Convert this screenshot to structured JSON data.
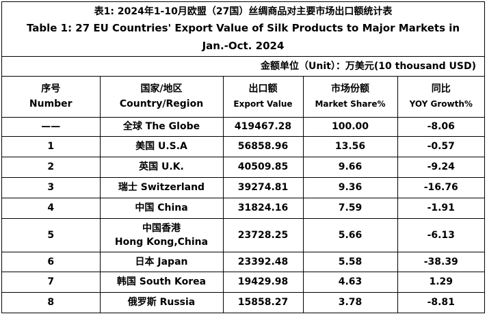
{
  "header": {
    "title_zh": "表1: 2024年1-10月欧盟（27国）丝绸商品对主要市场出口额统计表",
    "title_en": "Table 1: 27 EU Countries' Export Value of Silk Products to Major Markets in Jan.-Oct. 2024",
    "unit": "金额单位（Unit）：万美元(10 thousand USD)"
  },
  "table": {
    "columns": [
      {
        "zh": "序号",
        "en": "Number"
      },
      {
        "zh": "国家/地区",
        "en": "Country/Region"
      },
      {
        "zh": "出口额",
        "en": "Export Value"
      },
      {
        "zh": "市场份额",
        "en": "Market Share%"
      },
      {
        "zh": "同比",
        "en": "YOY Growth%"
      }
    ],
    "rows": [
      [
        "——",
        "全球 The Globe",
        "419467.28",
        "100.00",
        "-8.06"
      ],
      [
        "1",
        "美国 U.S.A",
        "56858.96",
        "13.56",
        "-0.57"
      ],
      [
        "2",
        "英国 U.K.",
        "40509.85",
        "9.66",
        "-9.24"
      ],
      [
        "3",
        "瑞士 Switzerland",
        "39274.81",
        "9.36",
        "-16.76"
      ],
      [
        "4",
        "中国 China",
        "31824.16",
        "7.59",
        "-1.91"
      ],
      [
        "5",
        "中国香港\nHong Kong,China",
        "23728.25",
        "5.66",
        "-6.13"
      ],
      [
        "6",
        "日本 Japan",
        "23392.48",
        "5.58",
        "-38.39"
      ],
      [
        "7",
        "韩国 South Korea",
        "19429.98",
        "4.63",
        "1.29"
      ],
      [
        "8",
        "俄罗斯 Russia",
        "15858.27",
        "3.78",
        "-8.81"
      ]
    ]
  }
}
